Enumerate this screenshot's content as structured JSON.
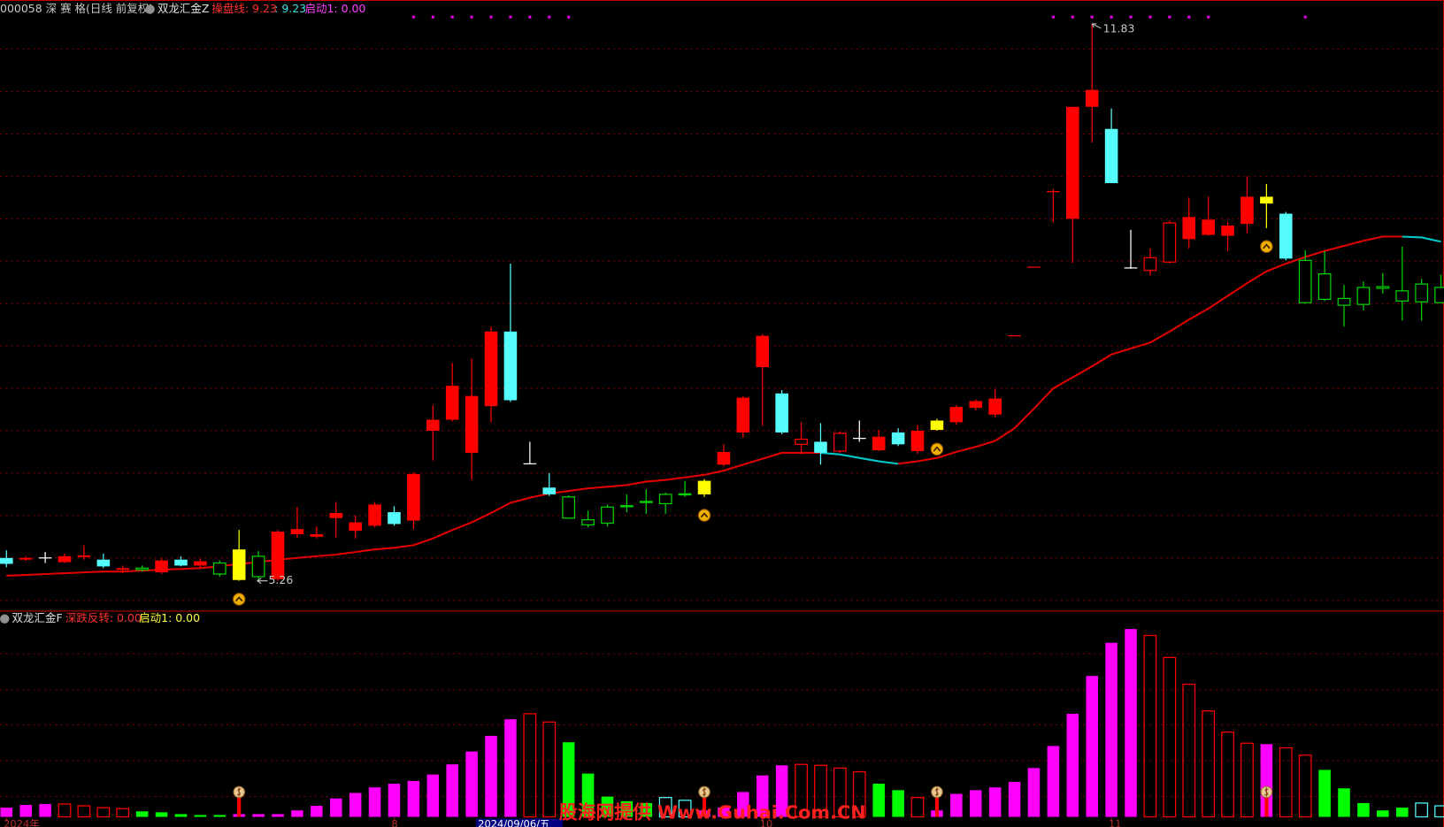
{
  "chart_data": [
    {
      "type": "candlestick",
      "title": "000058 深 赛 格(日线 前复权)",
      "indicator": "双龙汇金Z",
      "indicator_values": [
        "操盘线: 9.23",
        ": 9.23",
        "启动1: 0.00"
      ],
      "categories": [
        "2024年",
        null,
        null,
        null,
        null,
        null,
        null,
        null,
        null,
        null,
        null,
        null,
        null,
        null,
        null,
        null,
        null,
        null,
        null,
        null,
        "8",
        null,
        null,
        null,
        null,
        null,
        null,
        null,
        null,
        null,
        null,
        null,
        null,
        null,
        null,
        null,
        null,
        null,
        null,
        "10",
        null,
        null,
        null,
        null,
        null,
        null,
        null,
        null,
        null,
        null,
        null,
        null,
        null,
        null,
        null,
        null,
        null,
        "11",
        null,
        null,
        null,
        null,
        null,
        null,
        null,
        null,
        null,
        null,
        null,
        null,
        null,
        null,
        null,
        null,
        null
      ],
      "open": [
        5.53,
        5.51,
        5.53,
        5.48,
        5.54,
        5.51,
        5.39,
        5.41,
        5.36,
        5.51,
        5.44,
        5.47,
        5.27,
        5.55,
        5.28,
        5.81,
        5.78,
        6.0,
        5.85,
        5.91,
        6.07,
        5.97,
        7.03,
        7.16,
        6.77,
        7.32,
        8.2,
        6.64,
        6.36,
        6.25,
        5.98,
        6.13,
        6.14,
        6.19,
        6.28,
        6.28,
        6.44,
        6.63,
        7.01,
        7.78,
        7.47,
        6.87,
        6.9,
        6.79,
        6.94,
        6.8,
        7.01,
        6.79,
        7.04,
        7.13,
        7.3,
        7.22,
        8.15,
        8.96,
        9.85,
        9.53,
        10.85,
        10.59,
        8.95,
        8.92,
        9.02,
        9.29,
        9.34,
        9.33,
        9.47,
        9.71,
        9.59,
        9.04,
        8.88,
        8.59,
        8.72,
        8.73,
        8.68,
        8.76,
        8.72
      ],
      "close": [
        5.46,
        5.53,
        5.53,
        5.55,
        5.56,
        5.43,
        5.41,
        5.39,
        5.5,
        5.44,
        5.49,
        5.34,
        5.63,
        5.31,
        5.84,
        5.87,
        5.81,
        6.06,
        5.95,
        6.16,
        5.93,
        6.52,
        7.16,
        7.56,
        7.44,
        8.2,
        7.39,
        6.64,
        6.28,
        6.0,
        5.92,
        5.94,
        6.14,
        6.19,
        6.17,
        6.28,
        6.28,
        6.78,
        7.42,
        8.15,
        7.01,
        6.93,
        6.77,
        7.0,
        6.93,
        6.96,
        6.87,
        7.03,
        7.15,
        7.31,
        7.38,
        7.41,
        8.15,
        8.96,
        9.85,
        10.85,
        11.05,
        9.95,
        8.95,
        9.07,
        9.48,
        9.55,
        9.52,
        9.45,
        9.79,
        9.79,
        9.06,
        8.54,
        8.58,
        8.51,
        8.52,
        8.71,
        8.56,
        8.55,
        8.54
      ],
      "high": [
        5.62,
        5.55,
        5.6,
        5.58,
        5.68,
        5.58,
        5.44,
        5.44,
        5.53,
        5.55,
        5.52,
        5.5,
        5.86,
        5.61,
        5.86,
        6.13,
        5.9,
        6.19,
        6.03,
        6.19,
        6.14,
        6.54,
        7.33,
        7.83,
        7.88,
        8.26,
        9.0,
        6.9,
        6.53,
        6.27,
        6.09,
        6.16,
        6.28,
        6.34,
        6.3,
        6.44,
        6.46,
        6.87,
        7.44,
        8.17,
        7.51,
        7.13,
        7.12,
        7.02,
        7.15,
        7.04,
        7.06,
        7.1,
        7.17,
        7.33,
        7.4,
        7.52,
        8.15,
        8.96,
        9.88,
        10.85,
        11.83,
        10.83,
        9.4,
        9.18,
        9.51,
        9.78,
        9.79,
        9.49,
        10.03,
        9.94,
        9.61,
        9.16,
        9.15,
        8.75,
        8.79,
        8.89,
        9.2,
        8.82,
        8.87
      ],
      "low": [
        5.42,
        5.49,
        5.47,
        5.47,
        5.51,
        5.41,
        5.35,
        5.37,
        5.34,
        5.43,
        5.41,
        5.31,
        5.26,
        5.26,
        5.26,
        5.77,
        5.76,
        5.77,
        5.76,
        5.89,
        5.91,
        5.87,
        6.68,
        7.14,
        6.45,
        7.13,
        7.37,
        6.64,
        6.26,
        5.99,
        5.89,
        5.9,
        6.07,
        6.05,
        6.05,
        6.25,
        6.25,
        6.61,
        6.95,
        7.09,
        6.99,
        6.75,
        6.63,
        6.77,
        6.9,
        6.79,
        6.85,
        6.76,
        7.03,
        7.1,
        7.27,
        7.19,
        8.15,
        8.96,
        9.49,
        9.01,
        10.43,
        9.95,
        8.94,
        8.86,
        9.0,
        9.18,
        9.33,
        9.15,
        9.36,
        9.42,
        9.04,
        8.53,
        8.56,
        8.26,
        8.45,
        8.65,
        8.33,
        8.33,
        8.54
      ],
      "colors": [
        "#54fcfc",
        "#ff0000",
        "#ffffff",
        "#ff0000",
        "#ff0000",
        "#54fcfc",
        "#ff0000",
        "#00d000",
        "#ff0000",
        "#54fcfc",
        "#ff0000",
        "#00d000",
        "#ffff00",
        "#00d000",
        "#ff0000",
        "#ff0000",
        "#ff0000",
        "#ff0000",
        "#ff0000",
        "#ff0000",
        "#54fcfc",
        "#ff0000",
        "#ff0000",
        "#ff0000",
        "#ff0000",
        "#ff0000",
        "#54fcfc",
        "#ffffff",
        "#54fcfc",
        "#00d000",
        "#00d000",
        "#00d000",
        "#00d000",
        "#00d000",
        "#00d000",
        "#00d000",
        "#ffff00",
        "#ff0000",
        "#ff0000",
        "#ff0000",
        "#54fcfc",
        "#ff0000",
        "#54fcfc",
        "#ff0000",
        "#ffffff",
        "#ff0000",
        "#54fcfc",
        "#ff0000",
        "#ffff00",
        "#ff0000",
        "#ff0000",
        "#ff0000",
        "#ff0000",
        "#ff0000",
        "#ff0000",
        "#ff0000",
        "#ff0000",
        "#54fcfc",
        "#ffffff",
        "#ff0000",
        "#ff0000",
        "#ff0000",
        "#ff0000",
        "#ff0000",
        "#ff0000",
        "#ffff00",
        "#54fcfc",
        "#00d000",
        "#00d000",
        "#00d000",
        "#00d000",
        "#00d000",
        "#00d000",
        "#00d000",
        "#00d000"
      ],
      "hollow": [
        false,
        false,
        false,
        false,
        false,
        false,
        false,
        true,
        false,
        false,
        false,
        true,
        false,
        true,
        false,
        false,
        false,
        false,
        false,
        false,
        false,
        false,
        false,
        false,
        false,
        false,
        false,
        false,
        false,
        true,
        true,
        true,
        true,
        true,
        true,
        true,
        false,
        false,
        false,
        false,
        false,
        true,
        false,
        true,
        false,
        false,
        false,
        false,
        false,
        false,
        false,
        false,
        false,
        false,
        false,
        false,
        false,
        false,
        false,
        true,
        true,
        false,
        false,
        false,
        false,
        false,
        false,
        true,
        true,
        true,
        true,
        true,
        true,
        true,
        true
      ],
      "series": [
        {
          "color": "#e00000",
          "values": [
            5.32,
            5.33,
            5.34,
            5.35,
            5.36,
            5.37,
            5.37,
            5.38,
            5.39,
            5.4,
            5.41,
            5.43,
            5.46,
            5.48,
            5.51,
            5.53,
            5.55,
            5.57,
            5.6,
            5.63,
            5.65,
            5.68,
            5.76,
            5.86,
            5.95,
            6.06,
            6.18,
            6.24,
            6.29,
            6.32,
            6.35,
            6.37,
            6.39,
            6.43,
            6.45,
            6.48,
            6.51,
            6.56,
            6.63,
            6.7,
            6.77,
            6.77,
            6.77,
            null,
            null,
            null,
            6.64,
            6.67,
            6.71,
            6.78,
            6.84,
            6.91,
            7.06,
            7.29,
            7.53,
            7.66,
            7.79,
            7.93,
            8.0,
            8.07,
            8.2,
            8.34,
            8.47,
            8.62,
            8.77,
            8.91,
            9.0,
            9.08,
            9.15,
            9.21,
            9.27,
            9.32,
            9.32,
            null,
            null
          ]
        },
        {
          "color": "#00c8c8",
          "values": [
            null,
            null,
            null,
            null,
            null,
            null,
            null,
            null,
            null,
            null,
            null,
            null,
            null,
            null,
            null,
            null,
            null,
            null,
            null,
            null,
            null,
            null,
            null,
            null,
            null,
            null,
            null,
            null,
            null,
            null,
            null,
            null,
            null,
            null,
            null,
            null,
            null,
            null,
            null,
            null,
            null,
            null,
            6.77,
            6.75,
            6.71,
            6.67,
            6.64,
            null,
            null,
            null,
            null,
            null,
            null,
            null,
            null,
            null,
            null,
            null,
            null,
            null,
            null,
            null,
            null,
            null,
            null,
            null,
            null,
            null,
            null,
            null,
            null,
            null,
            9.32,
            9.31,
            9.26
          ]
        }
      ],
      "up_signals": [
        12,
        36,
        48,
        65
      ],
      "top_signals": [
        21,
        22,
        23,
        24,
        25,
        26,
        27,
        28,
        29,
        54,
        55,
        56,
        57,
        58,
        59,
        60,
        61,
        62,
        67
      ],
      "ylim": [
        4.92,
        12.11
      ],
      "yticks": [
        5.03,
        5.53,
        6.03,
        6.53,
        7.03,
        7.53,
        8.03,
        8.53,
        9.03,
        9.53,
        10.03,
        10.53,
        11.03,
        11.53
      ],
      "grid": true
    },
    {
      "type": "bar",
      "title": "双龙汇金F",
      "indicator_values": [
        "深跌反转: 0.00",
        "启动1: 0.00"
      ],
      "values": [
        10,
        13,
        14,
        14,
        12,
        10,
        9,
        6,
        5,
        3,
        2,
        2,
        3,
        3,
        3,
        7,
        12,
        20,
        26,
        32,
        36,
        39,
        46,
        57,
        71,
        88,
        106,
        112,
        103,
        81,
        47,
        22,
        17,
        15,
        21,
        18,
        7,
        10,
        27,
        45,
        56,
        57,
        56,
        53,
        49,
        36,
        29,
        21,
        7,
        25,
        29,
        32,
        38,
        53,
        77,
        112,
        153,
        189,
        204,
        197,
        173,
        144,
        115,
        92,
        80,
        79,
        75,
        67,
        51,
        31,
        15,
        7,
        10,
        15,
        12
      ],
      "colors": [
        "#ff00ff",
        "#ff00ff",
        "#ff00ff",
        "#ff0000",
        "#ff0000",
        "#ff0000",
        "#ff0000",
        "#00ff00",
        "#00ff00",
        "#00ff00",
        "#00ff00",
        "#00ff00",
        "#ff00ff",
        "#ff00ff",
        "#ff00ff",
        "#ff00ff",
        "#ff00ff",
        "#ff00ff",
        "#ff00ff",
        "#ff00ff",
        "#ff00ff",
        "#ff00ff",
        "#ff00ff",
        "#ff00ff",
        "#ff00ff",
        "#ff00ff",
        "#ff00ff",
        "#ff0000",
        "#ff0000",
        "#00ff00",
        "#00ff00",
        "#00ff00",
        "#00ff00",
        "#00ff00",
        "#54fcfc",
        "#54fcfc",
        "#ff00ff",
        "#ff00ff",
        "#ff00ff",
        "#ff00ff",
        "#ff00ff",
        "#ff0000",
        "#ff0000",
        "#ff0000",
        "#ff0000",
        "#00ff00",
        "#00ff00",
        "#ff0000",
        "#ff00ff",
        "#ff00ff",
        "#ff00ff",
        "#ff00ff",
        "#ff00ff",
        "#ff00ff",
        "#ff00ff",
        "#ff00ff",
        "#ff00ff",
        "#ff00ff",
        "#ff00ff",
        "#ff0000",
        "#ff0000",
        "#ff0000",
        "#ff0000",
        "#ff0000",
        "#ff0000",
        "#ff00ff",
        "#ff0000",
        "#ff0000",
        "#00ff00",
        "#00ff00",
        "#00ff00",
        "#00ff00",
        "#00ff00",
        "#54fcfc",
        "#54fcfc"
      ],
      "hollow": [
        false,
        false,
        false,
        true,
        true,
        true,
        true,
        false,
        false,
        false,
        false,
        false,
        false,
        false,
        false,
        false,
        false,
        false,
        false,
        false,
        false,
        false,
        false,
        false,
        false,
        false,
        false,
        true,
        true,
        false,
        false,
        false,
        false,
        false,
        true,
        true,
        false,
        false,
        false,
        false,
        false,
        true,
        true,
        true,
        true,
        false,
        false,
        true,
        false,
        false,
        false,
        false,
        false,
        false,
        false,
        false,
        false,
        false,
        false,
        true,
        true,
        true,
        true,
        true,
        true,
        false,
        true,
        true,
        false,
        false,
        false,
        false,
        false,
        true,
        true
      ],
      "signals": [
        12,
        36,
        48,
        65
      ],
      "ylim": [
        0,
        210
      ],
      "yticks": [
        22,
        61,
        100,
        138,
        177
      ],
      "grid": true
    }
  ],
  "cursor_label": "2024/09/06/五",
  "watermark": "股海网提供 Www.Guhai.Com.CN"
}
